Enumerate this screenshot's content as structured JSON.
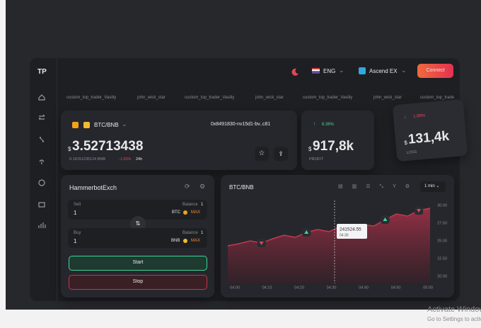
{
  "sidebar": {
    "logo": "TP"
  },
  "topbar": {
    "language": "ENG",
    "exchange": "Ascend EX",
    "connect": "Connect"
  },
  "ticker": [
    "custom_top_trader_Vasiliy",
    "john_wick_star",
    "custom_top_trader_Vasiliy",
    "john_wick_star",
    "custom_top_trader_Vasiliy",
    "john_wick_star",
    "custom_top_trade"
  ],
  "pair_card": {
    "pair": "BTC/BNB",
    "address": "0x8491830-nv15d1-bv..c81",
    "currency": "$",
    "price": "3.52713438",
    "sub_value": "0.14151235124 BNB",
    "change": "-1.65%",
    "period": "24h"
  },
  "profit_card": {
    "change": "6.36%",
    "currency": "$",
    "value": "917,8k",
    "label": "PROFIT"
  },
  "loss_card": {
    "change": "1.88%",
    "currency": "$",
    "value": "131,4k",
    "label": "LOSS"
  },
  "bot_panel": {
    "title": "HammerbotExch",
    "sell": {
      "label": "Sell",
      "value": "1",
      "balance_label": "Balance",
      "balance": "1",
      "asset": "BTC",
      "max": "MAX"
    },
    "buy": {
      "label": "Buy",
      "value": "1",
      "balance_label": "Balance",
      "balance": "1",
      "asset": "BNB",
      "max": "MAX"
    },
    "start": "Start",
    "stop": "Stop"
  },
  "chart": {
    "type": "area",
    "title": "BTC/BNB",
    "interval": "1 min",
    "color": "#c23a4e",
    "categories": [
      "04:00",
      "04:10",
      "04:20",
      "04:30",
      "04:40",
      "04:50",
      "05:00"
    ],
    "values": [
      24.3,
      24.6,
      25.0,
      24.7,
      25.3,
      25.8,
      25.5,
      26.2,
      26.6,
      26.3,
      27.0,
      26.8,
      27.3,
      27.1,
      28.0,
      28.8,
      28.5,
      29.3,
      29.6
    ],
    "ylim": [
      19,
      30.5
    ],
    "yticks": [
      {
        "value": 30,
        "label": "30.00"
      },
      {
        "value": 27.5,
        "label": "27.50"
      },
      {
        "value": 25,
        "label": "25.00"
      },
      {
        "value": 22.5,
        "label": "22.50"
      },
      {
        "value": 20,
        "label": "20.00"
      }
    ],
    "tooltip": {
      "value": "241524.55",
      "time": "04:30"
    }
  },
  "watermark": {
    "title": "Activate Windows",
    "subtitle": "Go to Settings to activate Windows."
  }
}
